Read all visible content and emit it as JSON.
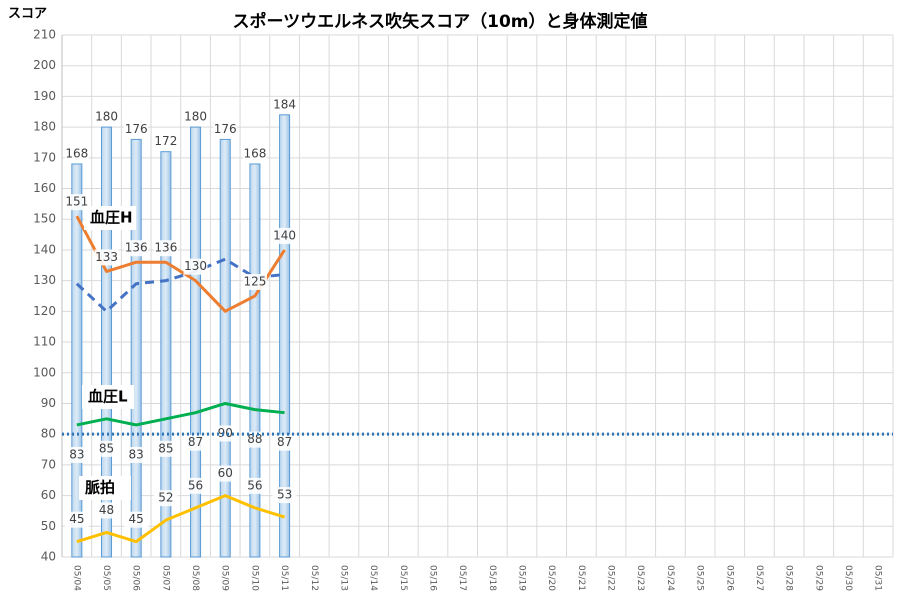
{
  "chart_data": {
    "type": "bar",
    "title": "スポーツウエルネス吹矢スコア（10m）と身体測定値",
    "y_label": "スコア",
    "categories": [
      "05/04",
      "05/05",
      "05/06",
      "05/07",
      "05/08",
      "05/09",
      "05/10",
      "05/11",
      "05/12",
      "05/13",
      "05/14",
      "05/15",
      "05/16",
      "05/17",
      "05/18",
      "05/19",
      "05/20",
      "05/21",
      "05/22",
      "05/23",
      "05/24",
      "05/25",
      "05/26",
      "05/27",
      "05/28",
      "05/29",
      "05/30",
      "05/31"
    ],
    "ylim": [
      40,
      210
    ],
    "yticks": [
      40,
      50,
      60,
      70,
      80,
      90,
      100,
      110,
      120,
      130,
      140,
      150,
      160,
      170,
      180,
      190,
      200,
      210
    ],
    "grid": true,
    "reference_line": {
      "value": 80,
      "color": "#2e75b6"
    },
    "series": [
      {
        "kind": "bar",
        "color": "#9dc3e6",
        "values": [
          168,
          180,
          176,
          172,
          180,
          176,
          168,
          184,
          null,
          null,
          null,
          null,
          null,
          null,
          null,
          null,
          null,
          null,
          null,
          null,
          null,
          null,
          null,
          null,
          null,
          null,
          null,
          null
        ]
      },
      {
        "kind": "line",
        "dash": true,
        "color": "#4472c4",
        "values": [
          129,
          120,
          129,
          130,
          133,
          137,
          131,
          132,
          null,
          null,
          null,
          null,
          null,
          null,
          null,
          null,
          null,
          null,
          null,
          null,
          null,
          null,
          null,
          null,
          null,
          null,
          null,
          null
        ]
      },
      {
        "kind": "line",
        "name": "血圧H",
        "color": "#ed7d31",
        "values": [
          151,
          133,
          136,
          136,
          130,
          120,
          125,
          140,
          null,
          null,
          null,
          null,
          null,
          null,
          null,
          null,
          null,
          null,
          null,
          null,
          null,
          null,
          null,
          null,
          null,
          null,
          null,
          null
        ],
        "value_labels": [
          "151",
          "133",
          "136",
          "136",
          "130",
          null,
          "125",
          "140",
          null,
          null,
          null,
          null,
          null,
          null,
          null,
          null,
          null,
          null,
          null,
          null,
          null,
          null,
          null,
          null,
          null,
          null,
          null,
          null
        ]
      },
      {
        "kind": "line",
        "name": "血圧L",
        "color": "#00b050",
        "values": [
          83,
          85,
          83,
          85,
          87,
          90,
          88,
          87,
          null,
          null,
          null,
          null,
          null,
          null,
          null,
          null,
          null,
          null,
          null,
          null,
          null,
          null,
          null,
          null,
          null,
          null,
          null,
          null
        ]
      },
      {
        "kind": "line",
        "name": "脈拍",
        "color": "#ffc000",
        "values": [
          45,
          48,
          45,
          52,
          56,
          60,
          56,
          53,
          null,
          null,
          null,
          null,
          null,
          null,
          null,
          null,
          null,
          null,
          null,
          null,
          null,
          null,
          null,
          null,
          null,
          null,
          null,
          null
        ]
      }
    ]
  }
}
